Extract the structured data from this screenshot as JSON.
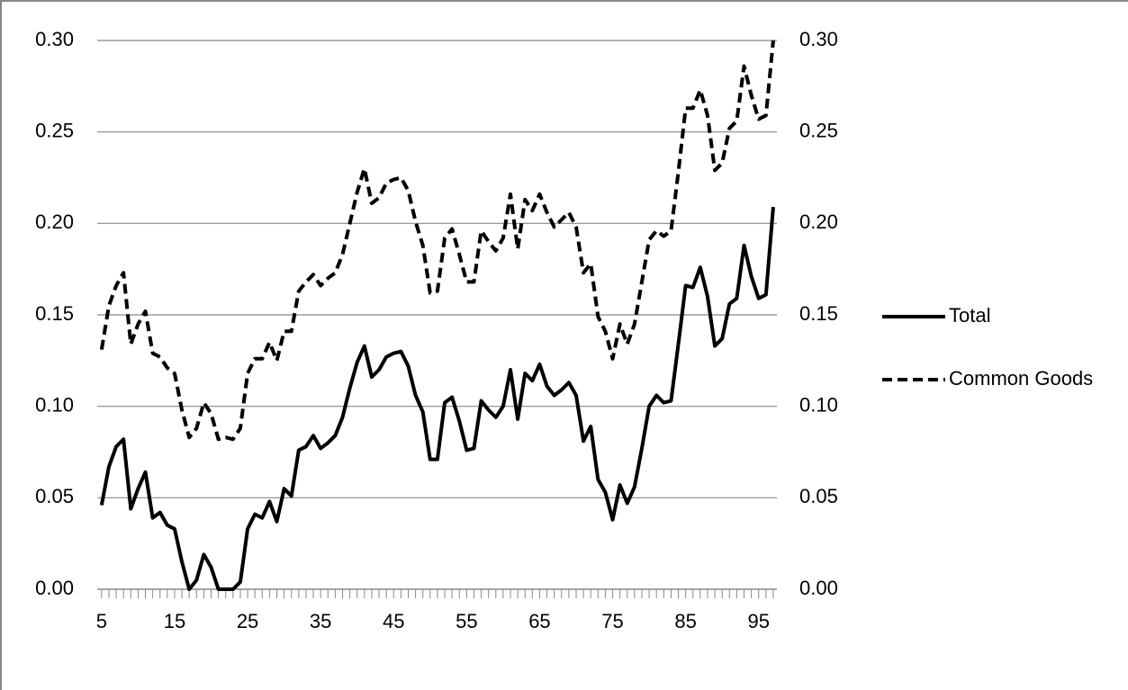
{
  "chart_data": {
    "type": "line",
    "x": [
      5,
      6,
      7,
      8,
      9,
      10,
      11,
      12,
      13,
      14,
      15,
      16,
      17,
      18,
      19,
      20,
      21,
      22,
      23,
      24,
      25,
      26,
      27,
      28,
      29,
      30,
      31,
      32,
      33,
      34,
      35,
      36,
      37,
      38,
      39,
      40,
      41,
      42,
      43,
      44,
      45,
      46,
      47,
      48,
      49,
      50,
      51,
      52,
      53,
      54,
      55,
      56,
      57,
      58,
      59,
      60,
      61,
      62,
      63,
      64,
      65,
      66,
      67,
      68,
      69,
      70,
      71,
      72,
      73,
      74,
      75,
      76,
      77,
      78,
      79,
      80,
      81,
      82,
      83,
      84,
      85,
      86,
      87,
      88,
      89,
      90,
      91,
      92,
      93,
      94,
      95,
      96,
      97
    ],
    "series": [
      {
        "name": "Total",
        "color": "#000000",
        "style": "solid",
        "values": [
          0.046,
          0.067,
          0.078,
          0.082,
          0.044,
          0.055,
          0.064,
          0.039,
          0.042,
          0.035,
          0.033,
          0.015,
          0.0,
          0.005,
          0.019,
          0.012,
          0.0,
          0.0,
          0.0,
          0.004,
          0.033,
          0.041,
          0.039,
          0.048,
          0.037,
          0.055,
          0.051,
          0.076,
          0.078,
          0.084,
          0.077,
          0.08,
          0.084,
          0.094,
          0.11,
          0.124,
          0.133,
          0.116,
          0.12,
          0.127,
          0.129,
          0.13,
          0.122,
          0.106,
          0.097,
          0.071,
          0.071,
          0.102,
          0.105,
          0.092,
          0.076,
          0.077,
          0.103,
          0.098,
          0.094,
          0.1,
          0.12,
          0.093,
          0.118,
          0.114,
          0.123,
          0.111,
          0.106,
          0.109,
          0.113,
          0.106,
          0.081,
          0.089,
          0.06,
          0.053,
          0.038,
          0.057,
          0.047,
          0.056,
          0.077,
          0.1,
          0.106,
          0.102,
          0.103,
          0.134,
          0.166,
          0.165,
          0.176,
          0.16,
          0.133,
          0.137,
          0.156,
          0.159,
          0.188,
          0.171,
          0.159,
          0.161,
          0.209
        ]
      },
      {
        "name": "Common Goods",
        "color": "#000000",
        "style": "dashed",
        "values": [
          0.131,
          0.155,
          0.166,
          0.173,
          0.134,
          0.145,
          0.152,
          0.129,
          0.127,
          0.121,
          0.118,
          0.098,
          0.083,
          0.088,
          0.102,
          0.096,
          0.082,
          0.083,
          0.082,
          0.088,
          0.118,
          0.126,
          0.126,
          0.135,
          0.125,
          0.141,
          0.141,
          0.163,
          0.168,
          0.172,
          0.166,
          0.17,
          0.173,
          0.183,
          0.2,
          0.217,
          0.23,
          0.211,
          0.214,
          0.222,
          0.224,
          0.225,
          0.218,
          0.201,
          0.188,
          0.162,
          0.163,
          0.192,
          0.197,
          0.183,
          0.168,
          0.168,
          0.196,
          0.19,
          0.185,
          0.192,
          0.216,
          0.186,
          0.213,
          0.207,
          0.216,
          0.206,
          0.198,
          0.202,
          0.206,
          0.198,
          0.173,
          0.178,
          0.149,
          0.141,
          0.126,
          0.145,
          0.134,
          0.145,
          0.168,
          0.191,
          0.196,
          0.193,
          0.196,
          0.228,
          0.263,
          0.263,
          0.273,
          0.259,
          0.229,
          0.233,
          0.252,
          0.256,
          0.286,
          0.27,
          0.257,
          0.259,
          0.3
        ]
      }
    ],
    "xlim": [
      4.4,
      97.5
    ],
    "xticks": [
      5,
      15,
      25,
      35,
      45,
      55,
      65,
      75,
      85,
      95
    ],
    "ylim": [
      0,
      0.3
    ],
    "yticks": [
      {
        "value": 0,
        "label": "0.00"
      },
      {
        "value": 0.05,
        "label": "0.05"
      },
      {
        "value": 0.1,
        "label": "0.10"
      },
      {
        "value": 0.15,
        "label": "0.15"
      },
      {
        "value": 0.2,
        "label": "0.20"
      },
      {
        "value": 0.25,
        "label": "0.25"
      },
      {
        "value": 0.3,
        "label": "0.30"
      }
    ],
    "y2lim": [
      0,
      0.3
    ],
    "y2ticks": [
      {
        "value": 0,
        "label": "0.00"
      },
      {
        "value": 0.05,
        "label": "0.05"
      },
      {
        "value": 0.1,
        "label": "0.10"
      },
      {
        "value": 0.15,
        "label": "0.15"
      },
      {
        "value": 0.2,
        "label": "0.20"
      },
      {
        "value": 0.25,
        "label": "0.25"
      },
      {
        "value": 0.3,
        "label": "0.30"
      }
    ],
    "grid": true,
    "legend": "right"
  }
}
